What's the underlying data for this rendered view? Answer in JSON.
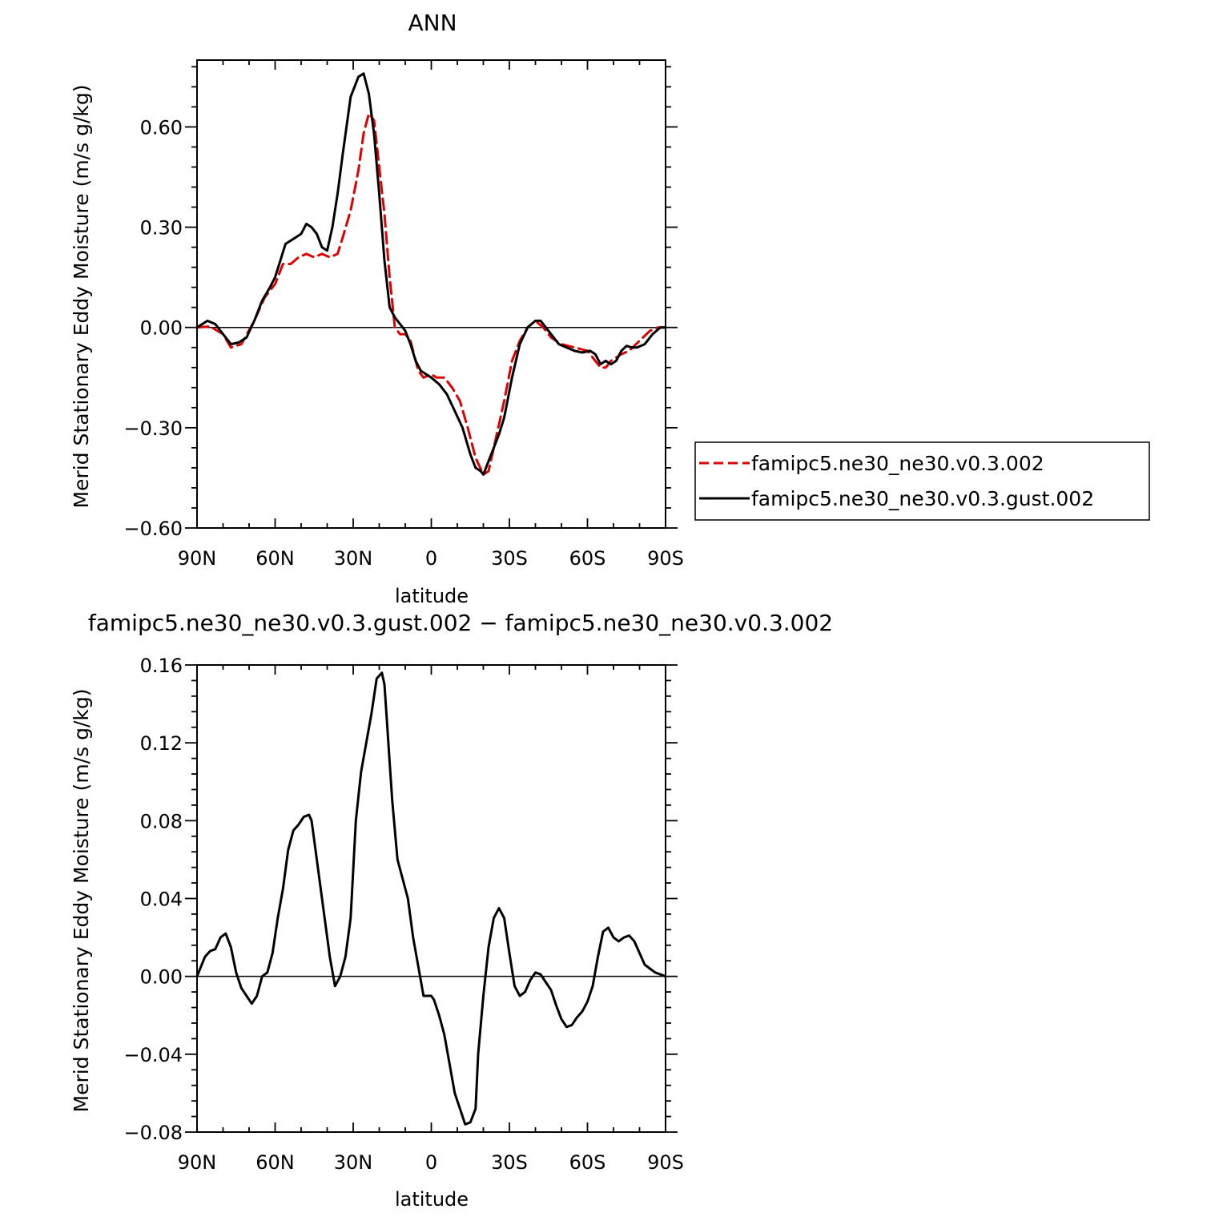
{
  "chart_data": [
    {
      "type": "line",
      "title": "ANN",
      "xlabel": "latitude",
      "ylabel": "Merid Stationary Eddy Moisture (m/s g/kg)",
      "xlim": [
        -90,
        90
      ],
      "ylim": [
        -0.6,
        0.8
      ],
      "x_ticks": [
        -90,
        -60,
        -30,
        0,
        30,
        60,
        90
      ],
      "x_tick_labels": [
        "90N",
        "60N",
        "30N",
        "0",
        "30S",
        "60S",
        "90S"
      ],
      "y_ticks": [
        -0.6,
        -0.3,
        0,
        0.3,
        0.6
      ],
      "y_tick_labels": [
        "−0.60",
        "−0.30",
        "0.00",
        "0.30",
        "0.60"
      ],
      "legend_position": "right",
      "series": [
        {
          "name": "famipc5.ne30_ne30.v0.3.002",
          "color": "#e00000",
          "dash": "dashed",
          "x": [
            -90,
            -85,
            -80,
            -77,
            -73,
            -68,
            -64,
            -60,
            -57,
            -54,
            -51,
            -48,
            -45,
            -42,
            -39,
            -36,
            -34,
            -31,
            -28,
            -26,
            -24,
            -22,
            -20,
            -18,
            -16,
            -14,
            -12,
            -10,
            -8,
            -5,
            -3,
            0,
            2,
            5,
            8,
            11,
            14,
            17,
            20,
            22,
            24,
            26,
            28,
            31,
            34,
            37,
            40,
            43,
            46,
            50,
            55,
            60,
            63,
            65,
            67,
            69,
            71,
            73,
            76,
            80,
            84,
            87,
            90
          ],
          "y": [
            0.0,
            0.003,
            -0.02,
            -0.06,
            -0.05,
            0.02,
            0.09,
            0.13,
            0.19,
            0.19,
            0.21,
            0.22,
            0.21,
            0.22,
            0.21,
            0.22,
            0.27,
            0.35,
            0.47,
            0.58,
            0.64,
            0.62,
            0.48,
            0.34,
            0.15,
            0.0,
            -0.02,
            -0.02,
            -0.04,
            -0.13,
            -0.15,
            -0.14,
            -0.15,
            -0.15,
            -0.18,
            -0.22,
            -0.3,
            -0.39,
            -0.44,
            -0.43,
            -0.36,
            -0.29,
            -0.22,
            -0.1,
            -0.04,
            0.0,
            0.02,
            0.0,
            -0.03,
            -0.05,
            -0.06,
            -0.07,
            -0.1,
            -0.12,
            -0.12,
            -0.1,
            -0.09,
            -0.08,
            -0.07,
            -0.04,
            -0.01,
            0.0,
            0.0
          ]
        },
        {
          "name": "famipc5.ne30_ne30.v0.3.gust.002",
          "color": "#000000",
          "dash": "solid",
          "x": [
            -90,
            -86,
            -83,
            -80,
            -77,
            -74,
            -71,
            -68,
            -65,
            -62,
            -60,
            -58,
            -56,
            -54,
            -52,
            -50,
            -48,
            -46,
            -44,
            -42,
            -40,
            -38,
            -36,
            -34,
            -31,
            -28,
            -26,
            -24,
            -22,
            -20,
            -18,
            -16,
            -14,
            -12,
            -10,
            -8,
            -6,
            -4,
            -2,
            0,
            3,
            6,
            9,
            12,
            15,
            17,
            19,
            20,
            22,
            24,
            26,
            28,
            31,
            34,
            37,
            40,
            42,
            44,
            46,
            49,
            52,
            55,
            58,
            61,
            63,
            65,
            67,
            69,
            71,
            73,
            75,
            77,
            79,
            82,
            85,
            88,
            90
          ],
          "y": [
            0.0,
            0.02,
            0.01,
            -0.02,
            -0.05,
            -0.045,
            -0.03,
            0.02,
            0.08,
            0.12,
            0.15,
            0.2,
            0.25,
            0.26,
            0.27,
            0.28,
            0.31,
            0.3,
            0.28,
            0.24,
            0.23,
            0.3,
            0.4,
            0.52,
            0.69,
            0.75,
            0.76,
            0.7,
            0.58,
            0.4,
            0.2,
            0.06,
            0.03,
            0.01,
            -0.01,
            -0.05,
            -0.1,
            -0.13,
            -0.14,
            -0.15,
            -0.17,
            -0.2,
            -0.25,
            -0.3,
            -0.38,
            -0.42,
            -0.43,
            -0.44,
            -0.4,
            -0.36,
            -0.32,
            -0.27,
            -0.15,
            -0.05,
            0.0,
            0.02,
            0.02,
            0.0,
            -0.02,
            -0.05,
            -0.06,
            -0.07,
            -0.075,
            -0.07,
            -0.08,
            -0.11,
            -0.1,
            -0.11,
            -0.1,
            -0.07,
            -0.055,
            -0.06,
            -0.06,
            -0.05,
            -0.02,
            0.0,
            0.0
          ]
        }
      ]
    },
    {
      "type": "line",
      "title": "famipc5.ne30_ne30.v0.3.gust.002 − famipc5.ne30_ne30.v0.3.002",
      "xlabel": "latitude",
      "ylabel": "Merid Stationary Eddy Moisture (m/s g/kg)",
      "xlim": [
        -90,
        90
      ],
      "ylim": [
        -0.08,
        0.16
      ],
      "x_ticks": [
        -90,
        -60,
        -30,
        0,
        30,
        60,
        90
      ],
      "x_tick_labels": [
        "90N",
        "60N",
        "30N",
        "0",
        "30S",
        "60S",
        "90S"
      ],
      "y_ticks": [
        -0.08,
        -0.04,
        0,
        0.04,
        0.08,
        0.12,
        0.16
      ],
      "y_tick_labels": [
        "−0.08",
        "−0.04",
        "0.00",
        "0.04",
        "0.08",
        "0.12",
        "0.16"
      ],
      "series": [
        {
          "color": "#000000",
          "dash": "solid",
          "x": [
            -90,
            -87,
            -85,
            -83,
            -81,
            -79,
            -77,
            -75,
            -73,
            -71,
            -69,
            -67,
            -65,
            -63,
            -61,
            -59,
            -57,
            -55,
            -53,
            -51,
            -49,
            -47,
            -46,
            -45,
            -43,
            -41,
            -39,
            -37,
            -35,
            -33,
            -31,
            -29,
            -27,
            -25,
            -23,
            -21,
            -19,
            -18,
            -17,
            -16,
            -15,
            -13,
            -11,
            -9,
            -7,
            -5,
            -3,
            -1,
            0,
            1,
            3,
            5,
            7,
            9,
            11,
            13,
            15,
            17,
            18,
            20,
            22,
            24,
            26,
            28,
            30,
            32,
            34,
            36,
            38,
            40,
            42,
            44,
            46,
            48,
            50,
            52,
            54,
            56,
            58,
            60,
            62,
            64,
            66,
            68,
            70,
            72,
            74,
            76,
            78,
            80,
            82,
            84,
            86,
            88,
            90
          ],
          "y": [
            0.0,
            0.01,
            0.013,
            0.014,
            0.02,
            0.022,
            0.015,
            0.002,
            -0.006,
            -0.01,
            -0.014,
            -0.01,
            0.0,
            0.002,
            0.012,
            0.03,
            0.045,
            0.065,
            0.075,
            0.078,
            0.082,
            0.083,
            0.08,
            0.07,
            0.05,
            0.03,
            0.01,
            -0.005,
            0.0,
            0.01,
            0.03,
            0.08,
            0.105,
            0.12,
            0.135,
            0.153,
            0.156,
            0.15,
            0.13,
            0.11,
            0.09,
            0.06,
            0.05,
            0.04,
            0.02,
            0.005,
            -0.01,
            -0.01,
            -0.01,
            -0.012,
            -0.02,
            -0.03,
            -0.045,
            -0.06,
            -0.068,
            -0.076,
            -0.075,
            -0.068,
            -0.04,
            -0.01,
            0.015,
            0.03,
            0.035,
            0.03,
            0.012,
            -0.005,
            -0.01,
            -0.008,
            -0.002,
            0.002,
            0.001,
            -0.003,
            -0.007,
            -0.015,
            -0.022,
            -0.026,
            -0.025,
            -0.021,
            -0.018,
            -0.013,
            -0.005,
            0.01,
            0.023,
            0.025,
            0.02,
            0.018,
            0.02,
            0.021,
            0.018,
            0.012,
            0.006,
            0.004,
            0.002,
            0.001,
            0.0
          ]
        }
      ]
    }
  ]
}
